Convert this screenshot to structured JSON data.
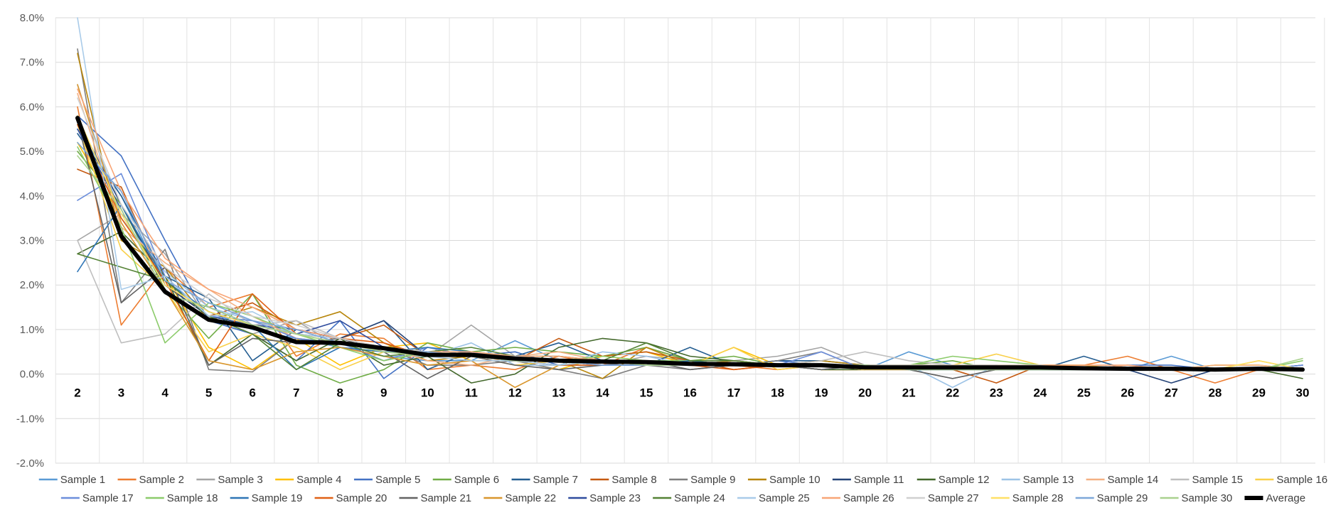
{
  "chart_data": {
    "type": "line",
    "title": "",
    "xlabel": "",
    "ylabel": "",
    "x": [
      2,
      3,
      4,
      5,
      6,
      7,
      8,
      9,
      10,
      11,
      12,
      13,
      14,
      15,
      16,
      17,
      18,
      19,
      20,
      21,
      22,
      23,
      24,
      25,
      26,
      27,
      28,
      29,
      30
    ],
    "x_tick_labels": [
      "2",
      "3",
      "4",
      "5",
      "6",
      "7",
      "8",
      "9",
      "10",
      "11",
      "12",
      "13",
      "14",
      "15",
      "16",
      "17",
      "18",
      "19",
      "20",
      "21",
      "22",
      "23",
      "24",
      "25",
      "26",
      "27",
      "28",
      "29",
      "30"
    ],
    "ylim": [
      -0.02,
      0.08
    ],
    "y_tick_values": [
      -0.02,
      -0.01,
      0,
      0.01,
      0.02,
      0.03,
      0.04,
      0.05,
      0.06,
      0.07,
      0.08
    ],
    "y_tick_labels": [
      "-2.0%",
      "-1.0%",
      "0.0%",
      "1.0%",
      "2.0%",
      "3.0%",
      "4.0%",
      "5.0%",
      "6.0%",
      "7.0%",
      "8.0%"
    ],
    "y_format": "percent",
    "grid": true,
    "legend_position": "bottom",
    "series": [
      {
        "name": "Sample 1",
        "color": "#5B9BD5",
        "values": [
          0.055,
          0.04,
          0.02,
          0.014,
          0.01,
          0.008,
          0.006,
          0.004,
          0.003,
          0.003,
          0.0075,
          0.003,
          0.002,
          0.003,
          0.003,
          0.002,
          0.002,
          0.002,
          0.001,
          0.005,
          0.002,
          0.001,
          0.002,
          0.001,
          0.001,
          0.004,
          0.001,
          0.001,
          0.002
        ]
      },
      {
        "name": "Sample 2",
        "color": "#ED7D31",
        "values": [
          0.06,
          0.011,
          0.024,
          0.015,
          0.018,
          0.004,
          0.009,
          0.008,
          0.001,
          0.002,
          0.001,
          0.004,
          0.002,
          0.006,
          0.003,
          0.002,
          0.001,
          0.002,
          0.001,
          0.001,
          0.002,
          0.001,
          0.002,
          0.002,
          0.004,
          0.001,
          -0.002,
          0.001,
          0.001
        ]
      },
      {
        "name": "Sample 3",
        "color": "#A5A5A5",
        "values": [
          0.03,
          0.036,
          0.027,
          0.012,
          0.009,
          0.012,
          0.006,
          0.005,
          0.004,
          0.011,
          0.004,
          0.003,
          0.002,
          0.004,
          0.003,
          0.003,
          0.004,
          0.006,
          0.002,
          0.002,
          0.002,
          0.001,
          0.002,
          0.001,
          0.001,
          0.001,
          0.001,
          0.001,
          0.001
        ]
      },
      {
        "name": "Sample 4",
        "color": "#FFC000",
        "values": [
          0.052,
          0.035,
          0.022,
          0.006,
          0.001,
          0.008,
          0.002,
          0.006,
          0.007,
          0.003,
          0.003,
          0.001,
          0.004,
          0.005,
          0.002,
          0.006,
          0.002,
          0.001,
          0.001,
          0.002,
          0.001,
          0.002,
          0.002,
          0.001,
          0.001,
          0.001,
          0.002,
          0.002,
          0.001
        ]
      },
      {
        "name": "Sample 5",
        "color": "#4472C4",
        "values": [
          0.058,
          0.049,
          0.03,
          0.012,
          0.009,
          0.003,
          0.012,
          -0.001,
          0.006,
          0.004,
          0.005,
          0.002,
          0.003,
          0.003,
          0.002,
          0.002,
          0.003,
          0.002,
          0.001,
          0.002,
          0.001,
          0.001,
          0.001,
          0.001,
          0.002,
          0.002,
          0.001,
          0.001,
          0.001
        ]
      },
      {
        "name": "Sample 6",
        "color": "#70AD47",
        "values": [
          0.05,
          0.038,
          0.019,
          0.008,
          0.018,
          0.002,
          -0.002,
          0.001,
          0.007,
          0.005,
          0.006,
          0.005,
          0.004,
          0.006,
          0.003,
          0.004,
          0.002,
          0.002,
          0.002,
          0.002,
          0.003,
          0.001,
          0.002,
          0.001,
          0.001,
          0.001,
          0.001,
          0.001,
          0.001
        ]
      },
      {
        "name": "Sample 7",
        "color": "#255E91",
        "values": [
          0.054,
          0.04,
          0.022,
          0.017,
          0.003,
          0.01,
          0.008,
          0.012,
          0.001,
          0.005,
          0.004,
          0.007,
          0.003,
          0.002,
          0.006,
          0.002,
          0.003,
          0.003,
          0.002,
          0.002,
          0.002,
          0.002,
          0.001,
          0.004,
          0.001,
          0.001,
          0.001,
          0.001,
          0.002
        ]
      },
      {
        "name": "Sample 8",
        "color": "#C55A11",
        "values": [
          0.046,
          0.042,
          0.02,
          0.013,
          0.016,
          0.01,
          0.008,
          0.011,
          0.004,
          0.004,
          0.003,
          0.008,
          0.004,
          0.005,
          0.003,
          0.001,
          0.002,
          0.001,
          0.001,
          0.001,
          0.001,
          -0.002,
          0.002,
          0.001,
          0.001,
          0.001,
          0.001,
          0.001,
          0.001
        ]
      },
      {
        "name": "Sample 9",
        "color": "#7F7F7F",
        "values": [
          0.073,
          0.016,
          0.028,
          0.001,
          0.0005,
          0.008,
          0.007,
          0.006,
          0.002,
          0.002,
          0.003,
          0.001,
          -0.001,
          0.002,
          0.001,
          0.002,
          0.003,
          0.005,
          0.001,
          0.001,
          -0.001,
          0.001,
          0.002,
          0.001,
          0.001,
          0.001,
          0.001,
          0.001,
          0.001
        ]
      },
      {
        "name": "Sample 10",
        "color": "#B8860B",
        "values": [
          0.072,
          0.03,
          0.024,
          0.012,
          0.015,
          0.011,
          0.014,
          0.007,
          0.003,
          0.004,
          0.004,
          0.003,
          -0.001,
          0.006,
          0.002,
          0.003,
          0.002,
          0.003,
          0.002,
          0.002,
          0.001,
          0.002,
          0.001,
          0.001,
          0.001,
          0.001,
          0.001,
          0.001,
          0.001
        ]
      },
      {
        "name": "Sample 11",
        "color": "#264478",
        "values": [
          0.057,
          0.038,
          0.02,
          0.013,
          0.011,
          0.01,
          0.008,
          0.012,
          0.004,
          0.005,
          0.003,
          0.003,
          0.002,
          0.002,
          0.002,
          0.002,
          0.002,
          0.002,
          0.001,
          0.001,
          0.001,
          0.001,
          0.001,
          0.001,
          0.001,
          -0.002,
          0.001,
          0.001,
          0.001
        ]
      },
      {
        "name": "Sample 12",
        "color": "#43682B",
        "values": [
          0.027,
          0.032,
          0.022,
          0.002,
          0.009,
          0.003,
          0.008,
          0.002,
          0.004,
          -0.002,
          0.0,
          0.006,
          0.008,
          0.007,
          0.004,
          0.003,
          0.002,
          0.001,
          0.001,
          0.002,
          0.002,
          0.002,
          0.001,
          0.001,
          0.001,
          0.001,
          0.001,
          0.001,
          -0.001
        ]
      },
      {
        "name": "Sample 13",
        "color": "#9DC3E6",
        "values": [
          0.065,
          0.035,
          0.023,
          0.015,
          0.012,
          0.009,
          0.007,
          0.004,
          0.004,
          0.007,
          0.002,
          0.002,
          0.005,
          0.004,
          0.002,
          0.003,
          0.002,
          0.001,
          0.002,
          0.002,
          -0.003,
          0.002,
          0.001,
          0.001,
          0.001,
          0.001,
          0.001,
          0.001,
          0.001
        ]
      },
      {
        "name": "Sample 14",
        "color": "#F4B183",
        "values": [
          0.063,
          0.033,
          0.025,
          0.019,
          0.013,
          0.008,
          0.007,
          0.006,
          0.003,
          0.002,
          0.004,
          0.005,
          0.003,
          0.002,
          0.002,
          0.002,
          0.002,
          0.002,
          0.001,
          0.001,
          0.001,
          0.002,
          0.001,
          0.001,
          0.002,
          0.001,
          0.002,
          0.002,
          0.001
        ]
      },
      {
        "name": "Sample 15",
        "color": "#BFBFBF",
        "values": [
          0.03,
          0.007,
          0.009,
          0.018,
          0.011,
          0.012,
          0.008,
          0.006,
          0.005,
          0.004,
          0.003,
          0.003,
          0.002,
          0.002,
          0.002,
          0.003,
          0.002,
          0.003,
          0.005,
          0.003,
          0.002,
          0.002,
          0.001,
          0.001,
          0.001,
          0.001,
          0.001,
          0.001,
          0.001
        ]
      },
      {
        "name": "Sample 16",
        "color": "#F9D04A",
        "values": [
          0.056,
          0.028,
          0.019,
          0.005,
          0.009,
          0.006,
          0.001,
          0.005,
          0.006,
          0.004,
          0.002,
          0.003,
          0.004,
          0.003,
          0.002,
          0.006,
          0.001,
          0.002,
          0.001,
          0.002,
          0.002,
          0.0045,
          0.002,
          0.002,
          0.001,
          0.001,
          0.001,
          0.003,
          0.001
        ]
      },
      {
        "name": "Sample 17",
        "color": "#6C8EDB",
        "values": [
          0.039,
          0.045,
          0.022,
          0.013,
          0.012,
          0.008,
          0.007,
          0.003,
          0.006,
          0.004,
          0.003,
          0.003,
          0.002,
          0.002,
          0.002,
          0.002,
          0.002,
          0.005,
          0.001,
          0.002,
          0.001,
          0.001,
          0.002,
          0.001,
          0.001,
          0.001,
          0.001,
          0.001,
          0.002
        ]
      },
      {
        "name": "Sample 18",
        "color": "#8CCB6B",
        "values": [
          0.051,
          0.033,
          0.007,
          0.016,
          0.013,
          0.009,
          0.006,
          0.003,
          0.005,
          0.005,
          0.004,
          0.003,
          0.004,
          0.003,
          0.003,
          0.002,
          0.002,
          0.002,
          0.002,
          0.002,
          0.004,
          0.003,
          0.002,
          0.001,
          0.001,
          0.001,
          0.001,
          0.001,
          0.003
        ]
      },
      {
        "name": "Sample 19",
        "color": "#2E75B6",
        "values": [
          0.023,
          0.038,
          0.021,
          0.014,
          0.011,
          0.001,
          0.006,
          0.005,
          0.006,
          0.005,
          0.003,
          0.002,
          0.002,
          0.002,
          0.003,
          0.002,
          0.002,
          0.002,
          0.002,
          0.001,
          0.001,
          0.001,
          0.001,
          0.001,
          0.001,
          0.001,
          0.001,
          0.001,
          0.001
        ]
      },
      {
        "name": "Sample 20",
        "color": "#E06014",
        "values": [
          0.056,
          0.035,
          0.021,
          0.003,
          0.018,
          0.009,
          0.008,
          0.007,
          0.004,
          0.004,
          0.003,
          0.002,
          0.002,
          0.003,
          0.002,
          0.001,
          0.002,
          0.002,
          0.001,
          0.002,
          0.001,
          0.001,
          0.002,
          0.001,
          0.001,
          0.001,
          0.001,
          0.001,
          0.001
        ]
      },
      {
        "name": "Sample 21",
        "color": "#636363",
        "values": [
          0.057,
          0.016,
          0.024,
          0.002,
          0.008,
          0.007,
          0.008,
          0.005,
          -0.001,
          0.004,
          0.002,
          0.001,
          0.002,
          0.003,
          0.001,
          0.002,
          0.002,
          0.001,
          0.002,
          0.001,
          -0.001,
          0.001,
          0.001,
          0.001,
          0.001,
          0.001,
          0.001,
          0.001,
          0.001
        ]
      },
      {
        "name": "Sample 22",
        "color": "#D9962C",
        "values": [
          0.065,
          0.034,
          0.019,
          0.003,
          0.001,
          0.005,
          0.006,
          0.004,
          0.002,
          0.003,
          -0.003,
          0.002,
          0.003,
          0.002,
          0.002,
          0.003,
          0.002,
          0.002,
          0.002,
          0.001,
          0.002,
          0.001,
          0.002,
          0.001,
          0.001,
          0.001,
          0.001,
          0.001,
          0.001
        ]
      },
      {
        "name": "Sample 23",
        "color": "#2F4C9E",
        "values": [
          0.055,
          0.037,
          0.018,
          0.015,
          0.011,
          0.009,
          0.012,
          0.006,
          0.005,
          0.004,
          0.003,
          0.003,
          0.002,
          0.002,
          0.002,
          0.002,
          0.002,
          0.002,
          0.002,
          0.001,
          0.001,
          0.002,
          0.001,
          0.001,
          0.001,
          0.001,
          0.001,
          0.001,
          0.001
        ]
      },
      {
        "name": "Sample 24",
        "color": "#548235",
        "values": [
          0.027,
          0.024,
          0.021,
          0.013,
          0.009,
          0.001,
          0.007,
          0.004,
          0.005,
          0.006,
          0.004,
          0.004,
          0.003,
          0.007,
          0.003,
          0.003,
          0.002,
          0.002,
          0.002,
          0.002,
          0.001,
          0.001,
          0.001,
          0.001,
          0.001,
          0.001,
          0.001,
          0.001,
          0.001
        ]
      },
      {
        "name": "Sample 25",
        "color": "#A9CBE9",
        "values": [
          0.08,
          0.019,
          0.022,
          0.013,
          0.014,
          0.009,
          0.008,
          0.006,
          0.004,
          0.003,
          0.003,
          0.002,
          0.003,
          0.002,
          0.002,
          0.002,
          0.002,
          0.002,
          0.001,
          0.001,
          0.001,
          0.001,
          0.001,
          0.001,
          0.001,
          0.001,
          0.001,
          0.001,
          0.001
        ]
      },
      {
        "name": "Sample 26",
        "color": "#F8A576",
        "values": [
          0.064,
          0.041,
          0.026,
          0.019,
          0.015,
          0.01,
          0.008,
          0.006,
          0.005,
          0.005,
          0.004,
          0.004,
          0.003,
          0.002,
          0.002,
          0.002,
          0.002,
          0.002,
          0.002,
          0.002,
          0.002,
          0.002,
          0.002,
          0.002,
          0.002,
          0.001,
          0.001,
          0.001,
          0.001
        ]
      },
      {
        "name": "Sample 27",
        "color": "#D0D0D0",
        "values": [
          0.062,
          0.038,
          0.024,
          0.017,
          0.013,
          0.011,
          0.008,
          0.006,
          0.005,
          0.004,
          0.004,
          0.003,
          0.003,
          0.003,
          0.002,
          0.002,
          0.002,
          0.002,
          0.002,
          0.002,
          0.002,
          0.002,
          0.002,
          0.001,
          0.001,
          0.001,
          0.001,
          0.001,
          0.001
        ]
      },
      {
        "name": "Sample 28",
        "color": "#FFE066",
        "values": [
          0.058,
          0.036,
          0.02,
          0.014,
          0.011,
          0.009,
          0.007,
          0.005,
          0.004,
          0.004,
          0.003,
          0.003,
          0.003,
          0.002,
          0.002,
          0.002,
          0.002,
          0.002,
          0.001,
          0.001,
          0.001,
          0.001,
          0.001,
          0.001,
          0.001,
          0.001,
          0.001,
          0.003,
          0.001
        ]
      },
      {
        "name": "Sample 29",
        "color": "#7DA7D9",
        "values": [
          0.052,
          0.041,
          0.021,
          0.016,
          0.012,
          0.01,
          0.007,
          0.005,
          0.005,
          0.004,
          0.003,
          0.003,
          0.002,
          0.002,
          0.002,
          0.002,
          0.002,
          0.002,
          0.002,
          0.001,
          0.001,
          0.001,
          0.001,
          0.001,
          0.001,
          0.001,
          0.001,
          0.001,
          0.001
        ]
      },
      {
        "name": "Sample 30",
        "color": "#A9D18E",
        "values": [
          0.049,
          0.037,
          0.018,
          0.015,
          0.011,
          0.009,
          0.007,
          0.005,
          0.004,
          0.004,
          0.003,
          0.003,
          0.003,
          0.002,
          0.002,
          0.002,
          0.002,
          0.002,
          0.002,
          0.001,
          0.001,
          0.001,
          0.001,
          0.001,
          0.001,
          0.001,
          0.001,
          0.001,
          0.0035
        ]
      },
      {
        "name": "Average",
        "color": "#000000",
        "values": [
          0.0575,
          0.031,
          0.0185,
          0.0122,
          0.0105,
          0.0072,
          0.007,
          0.0058,
          0.0043,
          0.0043,
          0.0035,
          0.003,
          0.0028,
          0.0027,
          0.0023,
          0.0022,
          0.002,
          0.002,
          0.0015,
          0.0015,
          0.0015,
          0.0015,
          0.0015,
          0.0013,
          0.0012,
          0.0012,
          0.001,
          0.0012,
          0.001
        ]
      }
    ]
  }
}
